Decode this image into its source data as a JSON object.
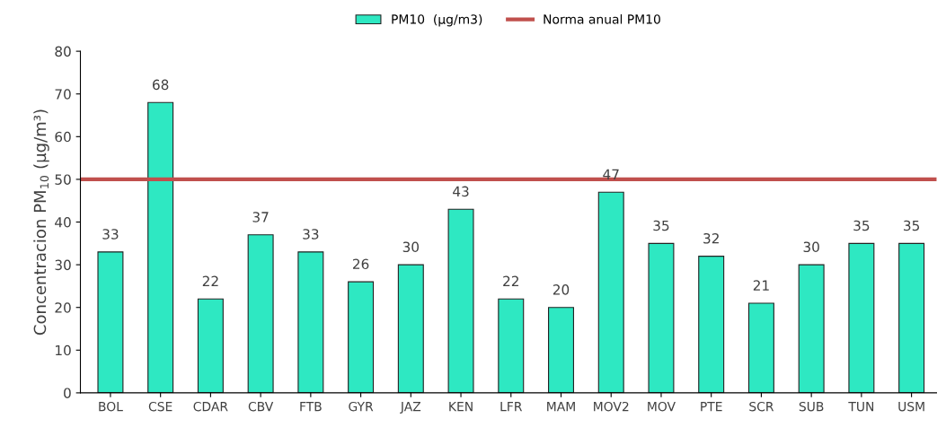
{
  "chart_data": {
    "type": "bar",
    "ylabel": "Concentracion PM$_{10}$ (µg/m³)",
    "categories": [
      "BOL",
      "CSE",
      "CDAR",
      "CBV",
      "FTB",
      "GYR",
      "JAZ",
      "KEN",
      "LFR",
      "MAM",
      "MOV2",
      "MOV",
      "PTE",
      "SCR",
      "SUB",
      "TUN",
      "USM"
    ],
    "series": [
      {
        "name": "PM10  (µg/m3)",
        "color": "#2ee8c2",
        "values": [
          33,
          68,
          22,
          37,
          33,
          26,
          30,
          43,
          22,
          20,
          47,
          35,
          32,
          21,
          30,
          35,
          35
        ]
      }
    ],
    "ylim": [
      0,
      80
    ],
    "yticks": [
      0,
      10,
      20,
      30,
      40,
      50,
      60,
      70,
      80
    ],
    "ref_lines": [
      {
        "axis": "y",
        "value": 50,
        "label": "Norma anual PM10",
        "color": "#c0504d"
      }
    ],
    "data_labels": true,
    "legend": "top"
  }
}
